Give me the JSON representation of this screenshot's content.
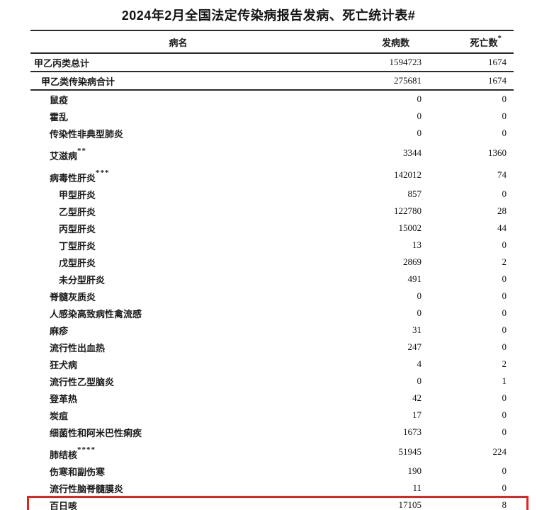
{
  "title": "2024年2月全国法定传染病报告发病、死亡统计表#",
  "table": {
    "headers": {
      "disease": "病名",
      "cases": "发病数",
      "deaths": "死亡数",
      "deaths_sup": "*"
    },
    "rows": [
      {
        "name": "甲乙丙类总计",
        "sup": "",
        "indent": 0,
        "cases": "1594723",
        "deaths": "1674",
        "rule_below": true,
        "highlight": false
      },
      {
        "name": "甲乙类传染病合计",
        "sup": "",
        "indent": 1,
        "cases": "275681",
        "deaths": "1674",
        "rule_below": true,
        "highlight": false
      },
      {
        "name": "鼠疫",
        "sup": "",
        "indent": 2,
        "cases": "0",
        "deaths": "0",
        "rule_below": false,
        "highlight": false
      },
      {
        "name": "霍乱",
        "sup": "",
        "indent": 2,
        "cases": "0",
        "deaths": "0",
        "rule_below": false,
        "highlight": false
      },
      {
        "name": "传染性非典型肺炎",
        "sup": "",
        "indent": 2,
        "cases": "0",
        "deaths": "0",
        "rule_below": false,
        "highlight": false
      },
      {
        "name": "艾滋病",
        "sup": "**",
        "indent": 2,
        "cases": "3344",
        "deaths": "1360",
        "rule_below": false,
        "highlight": false
      },
      {
        "name": "病毒性肝炎",
        "sup": "***",
        "indent": 2,
        "cases": "142012",
        "deaths": "74",
        "rule_below": false,
        "highlight": false
      },
      {
        "name": "甲型肝炎",
        "sup": "",
        "indent": 3,
        "cases": "857",
        "deaths": "0",
        "rule_below": false,
        "highlight": false
      },
      {
        "name": "乙型肝炎",
        "sup": "",
        "indent": 3,
        "cases": "122780",
        "deaths": "28",
        "rule_below": false,
        "highlight": false
      },
      {
        "name": "丙型肝炎",
        "sup": "",
        "indent": 3,
        "cases": "15002",
        "deaths": "44",
        "rule_below": false,
        "highlight": false
      },
      {
        "name": "丁型肝炎",
        "sup": "",
        "indent": 3,
        "cases": "13",
        "deaths": "0",
        "rule_below": false,
        "highlight": false
      },
      {
        "name": "戊型肝炎",
        "sup": "",
        "indent": 3,
        "cases": "2869",
        "deaths": "2",
        "rule_below": false,
        "highlight": false
      },
      {
        "name": "未分型肝炎",
        "sup": "",
        "indent": 3,
        "cases": "491",
        "deaths": "0",
        "rule_below": false,
        "highlight": false
      },
      {
        "name": "脊髓灰质炎",
        "sup": "",
        "indent": 2,
        "cases": "0",
        "deaths": "0",
        "rule_below": false,
        "highlight": false
      },
      {
        "name": "人感染高致病性禽流感",
        "sup": "",
        "indent": 2,
        "cases": "0",
        "deaths": "0",
        "rule_below": false,
        "highlight": false
      },
      {
        "name": "麻疹",
        "sup": "",
        "indent": 2,
        "cases": "31",
        "deaths": "0",
        "rule_below": false,
        "highlight": false
      },
      {
        "name": "流行性出血热",
        "sup": "",
        "indent": 2,
        "cases": "247",
        "deaths": "0",
        "rule_below": false,
        "highlight": false
      },
      {
        "name": "狂犬病",
        "sup": "",
        "indent": 2,
        "cases": "4",
        "deaths": "2",
        "rule_below": false,
        "highlight": false
      },
      {
        "name": "流行性乙型脑炎",
        "sup": "",
        "indent": 2,
        "cases": "0",
        "deaths": "1",
        "rule_below": false,
        "highlight": false
      },
      {
        "name": "登革热",
        "sup": "",
        "indent": 2,
        "cases": "42",
        "deaths": "0",
        "rule_below": false,
        "highlight": false
      },
      {
        "name": "炭疽",
        "sup": "",
        "indent": 2,
        "cases": "17",
        "deaths": "0",
        "rule_below": false,
        "highlight": false
      },
      {
        "name": "细菌性和阿米巴性痢疾",
        "sup": "",
        "indent": 2,
        "cases": "1673",
        "deaths": "0",
        "rule_below": false,
        "highlight": false
      },
      {
        "name": "肺结核",
        "sup": "****",
        "indent": 2,
        "cases": "51945",
        "deaths": "224",
        "rule_below": false,
        "highlight": false
      },
      {
        "name": "伤寒和副伤寒",
        "sup": "",
        "indent": 2,
        "cases": "190",
        "deaths": "0",
        "rule_below": false,
        "highlight": false
      },
      {
        "name": "流行性脑脊髓膜炎",
        "sup": "",
        "indent": 2,
        "cases": "11",
        "deaths": "0",
        "rule_below": false,
        "highlight": false
      },
      {
        "name": "百日咳",
        "sup": "",
        "indent": 2,
        "cases": "17105",
        "deaths": "8",
        "rule_below": false,
        "highlight": true
      }
    ]
  },
  "highlight_color": "#e42320"
}
